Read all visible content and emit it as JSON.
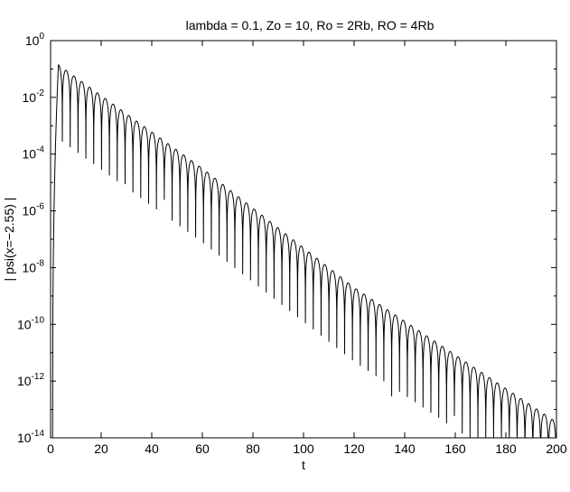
{
  "chart_data": {
    "type": "line",
    "title": "lambda = 0.1, Zo = 10, Ro = 2Rb, RO = 4Rb",
    "xlabel": "t",
    "ylabel": "| psi(x=−2.55) |",
    "xlim": [
      0,
      200
    ],
    "ylim": [
      1e-14,
      1
    ],
    "yscale": "log",
    "grid": false,
    "legend": "none",
    "x_ticks": [
      0,
      20,
      40,
      60,
      80,
      100,
      120,
      140,
      160,
      180,
      200
    ],
    "x_tick_labels": [
      "0",
      "20",
      "40",
      "60",
      "80",
      "100",
      "120",
      "140",
      "160",
      "180",
      "200"
    ],
    "y_tick_exponents": [
      0,
      -2,
      -4,
      -6,
      -8,
      -10,
      -12,
      -14
    ],
    "y_tick_labels": [
      {
        "base": "10",
        "exp": "0"
      },
      {
        "base": "10",
        "exp": "-2"
      },
      {
        "base": "10",
        "exp": "-4"
      },
      {
        "base": "10",
        "exp": "-6"
      },
      {
        "base": "10",
        "exp": "-8"
      },
      {
        "base": "10",
        "exp": "-10"
      },
      {
        "base": "10",
        "exp": "-12"
      },
      {
        "base": "10",
        "exp": "-14"
      }
    ],
    "series": [
      {
        "envelope_log10": [
          [
            3.1,
            -0.85
          ],
          [
            60,
            -4.5
          ],
          [
            120,
            -8.7
          ],
          [
            197.5,
            -13.3
          ]
        ],
        "oscillation_period": 3.1,
        "first_peak_t": 3.1,
        "envelope_peaks": [
          {
            "t": 3.1,
            "y": 0.14
          },
          {
            "t": 9.3,
            "y": 0.07
          },
          {
            "t": 60.0,
            "y": 3e-05
          },
          {
            "t": 120.0,
            "y": 2e-09
          },
          {
            "t": 197.5,
            "y": 5e-14
          }
        ],
        "notable_dips": [
          {
            "t": 30.0,
            "y": 9e-06
          },
          {
            "t": 45.0,
            "y": 2.5e-06
          },
          {
            "t": 75.5,
            "y": 6e-09
          },
          {
            "t": 134.5,
            "y": 3e-13
          },
          {
            "t": 160.0,
            "y": 6e-14
          }
        ],
        "dip_floor": 1e-14,
        "color": "#000000"
      }
    ]
  }
}
